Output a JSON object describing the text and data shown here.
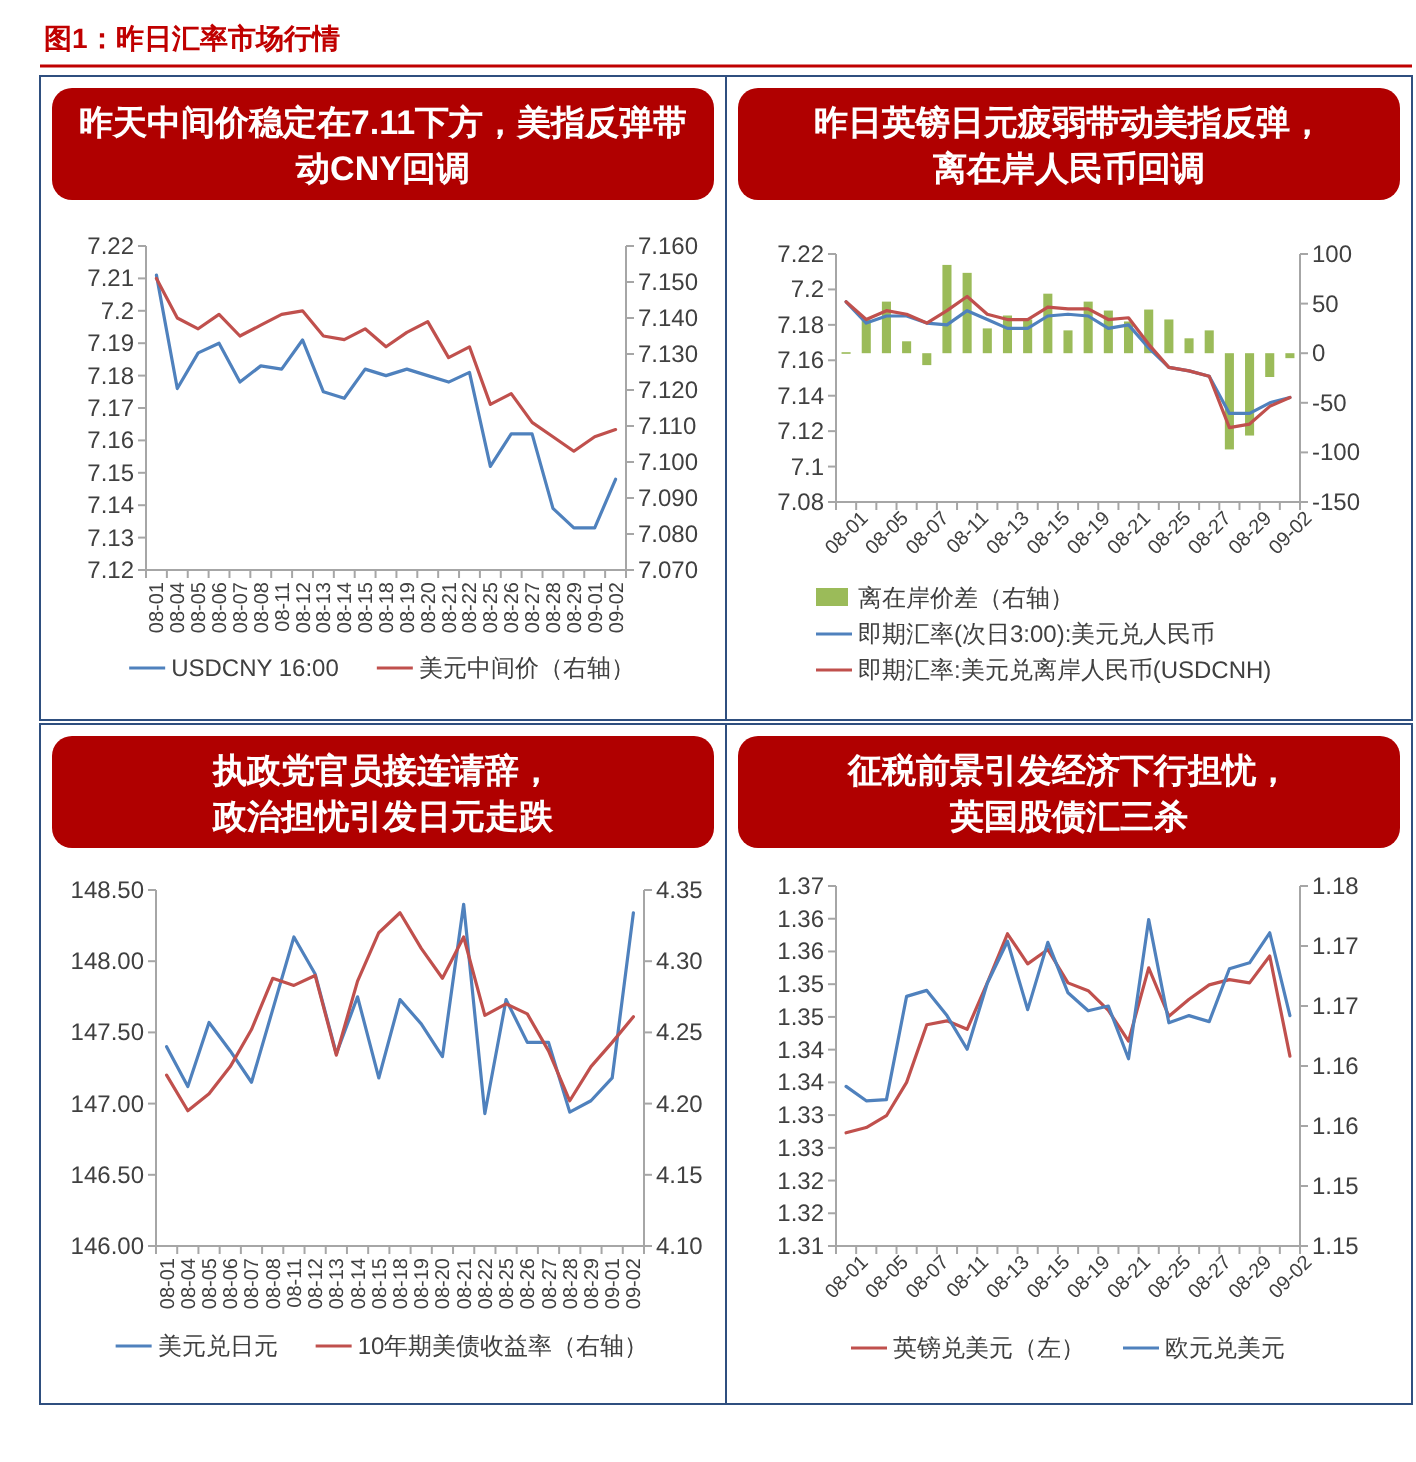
{
  "chart_data": [
    {
      "type": "line",
      "title": "昨天中间价稳定在7.11下方，美指反弹带动CNY回调",
      "annotations": [
        "图1：昨日汇率市场行情"
      ],
      "categories": [
        "08-01",
        "08-04",
        "08-05",
        "08-06",
        "08-07",
        "08-08",
        "08-11",
        "08-12",
        "08-13",
        "08-14",
        "08-15",
        "08-18",
        "08-19",
        "08-20",
        "08-21",
        "08-22",
        "08-25",
        "08-26",
        "08-27",
        "08-28",
        "08-29",
        "09-01",
        "09-02"
      ],
      "ylim": [
        7.12,
        7.22
      ],
      "yticks": [
        7.12,
        7.13,
        7.14,
        7.15,
        7.16,
        7.17,
        7.18,
        7.19,
        7.2,
        7.21,
        7.22
      ],
      "y2lim": [
        7.07,
        7.16
      ],
      "y2ticks": [
        {
          "value": 7.07,
          "label": "7.070"
        },
        {
          "value": 7.08,
          "label": "7.080"
        },
        {
          "value": 7.09,
          "label": "7.090"
        },
        {
          "value": 7.1,
          "label": "7.100"
        },
        {
          "value": 7.11,
          "label": "7.110"
        },
        {
          "value": 7.12,
          "label": "7.120"
        },
        {
          "value": 7.13,
          "label": "7.130"
        },
        {
          "value": 7.14,
          "label": "7.140"
        },
        {
          "value": 7.15,
          "label": "7.150"
        },
        {
          "value": 7.16,
          "label": "7.160"
        }
      ],
      "legend": "bottom",
      "series": [
        {
          "name": "USDCNY 16:00",
          "color": "#4f81bd",
          "values": [
            7.211,
            7.176,
            7.187,
            7.19,
            7.178,
            7.183,
            7.182,
            7.191,
            7.175,
            7.173,
            7.182,
            7.18,
            7.182,
            7.18,
            7.178,
            7.181,
            7.152,
            7.162,
            7.162,
            7.139,
            7.133,
            7.133,
            7.148
          ]
        },
        {
          "name": "美元中间价（右轴）",
          "color": "#c0504d",
          "axis": "y2",
          "values": [
            7.151,
            7.14,
            7.137,
            7.141,
            7.135,
            7.138,
            7.141,
            7.142,
            7.135,
            7.134,
            7.137,
            7.132,
            7.136,
            7.139,
            7.129,
            7.132,
            7.116,
            7.119,
            7.111,
            7.107,
            7.103,
            7.107,
            7.109
          ]
        }
      ]
    },
    {
      "type": "line",
      "title": "昨日英镑日元疲弱带动美指反弹，离在岸人民币回调",
      "categories": [
        "08-01",
        null,
        "08-05",
        null,
        "08-07",
        null,
        "08-11",
        null,
        "08-13",
        null,
        "08-15",
        null,
        "08-19",
        null,
        "08-21",
        null,
        "08-25",
        null,
        "08-27",
        null,
        "08-29",
        null,
        "09-02"
      ],
      "ylim": [
        7.08,
        7.22
      ],
      "yticks": [
        7.08,
        7.1,
        7.12,
        7.14,
        7.16,
        7.18,
        7.2,
        7.22
      ],
      "y2lim": [
        -150,
        100
      ],
      "y2ticks": [
        -150,
        -100,
        -50,
        0,
        50,
        100
      ],
      "legend": "bottom",
      "series": [
        {
          "name": "离在岸价差（右轴）",
          "type": "bar",
          "color": "#9bbb59",
          "axis": "y2",
          "values": [
            1,
            34,
            52,
            12,
            -12,
            89,
            81,
            25,
            38,
            34,
            60,
            23,
            52,
            43,
            32,
            44,
            34,
            15,
            23,
            -97,
            -83,
            -24,
            -5
          ]
        },
        {
          "name": "即期汇率(次日3:00):美元兑人民币",
          "color": "#4f81bd",
          "values": [
            7.193,
            7.181,
            7.185,
            7.185,
            7.181,
            7.18,
            7.188,
            7.183,
            7.178,
            7.178,
            7.185,
            7.186,
            7.185,
            7.178,
            7.18,
            7.167,
            7.156,
            7.154,
            7.151,
            7.13,
            7.13,
            7.136,
            7.139
          ]
        },
        {
          "name": "即期汇率:美元兑离岸人民币(USDCNH)",
          "color": "#c0504d",
          "values": [
            7.193,
            7.183,
            7.188,
            7.186,
            7.181,
            7.188,
            7.196,
            7.186,
            7.183,
            7.183,
            7.19,
            7.189,
            7.189,
            7.183,
            7.184,
            7.169,
            7.156,
            7.154,
            7.151,
            7.122,
            7.124,
            7.134,
            7.139
          ]
        }
      ]
    },
    {
      "type": "line",
      "title": "执政党官员接连请辞，政治担忧引发日元走跌",
      "categories": [
        "08-01",
        "08-04",
        "08-05",
        "08-06",
        "08-07",
        "08-08",
        "08-11",
        "08-12",
        "08-13",
        "08-14",
        "08-15",
        "08-18",
        "08-19",
        "08-20",
        "08-21",
        "08-22",
        "08-25",
        "08-26",
        "08-27",
        "08-28",
        "08-29",
        "09-01",
        "09-02"
      ],
      "ylim": [
        146.0,
        148.5
      ],
      "yticks": [
        {
          "value": 146,
          "label": "146.00"
        },
        {
          "value": 146.5,
          "label": "146.50"
        },
        {
          "value": 147,
          "label": "147.00"
        },
        {
          "value": 147.5,
          "label": "147.50"
        },
        {
          "value": 148,
          "label": "148.00"
        },
        {
          "value": 148.5,
          "label": "148.50"
        }
      ],
      "y2lim": [
        4.1,
        4.35
      ],
      "y2ticks": [
        {
          "value": 4.1,
          "label": "4.10"
        },
        {
          "value": 4.15,
          "label": "4.15"
        },
        {
          "value": 4.2,
          "label": "4.20"
        },
        {
          "value": 4.25,
          "label": "4.25"
        },
        {
          "value": 4.3,
          "label": "4.30"
        },
        {
          "value": 4.35,
          "label": "4.35"
        }
      ],
      "legend": "bottom",
      "series": [
        {
          "name": "美元兑日元",
          "color": "#4f81bd",
          "values": [
            147.4,
            147.12,
            147.57,
            147.37,
            147.15,
            147.66,
            148.17,
            147.91,
            147.35,
            147.75,
            147.18,
            147.73,
            147.56,
            147.33,
            148.4,
            146.93,
            147.73,
            147.43,
            147.43,
            146.94,
            147.02,
            147.18,
            148.34
          ]
        },
        {
          "name": "10年期美债收益率（右轴）",
          "color": "#c0504d",
          "axis": "y2",
          "values": [
            4.22,
            4.195,
            4.207,
            4.226,
            4.252,
            4.288,
            4.283,
            4.29,
            4.234,
            4.286,
            4.32,
            4.334,
            4.309,
            4.288,
            4.317,
            4.262,
            4.27,
            4.263,
            4.237,
            4.202,
            4.226,
            4.243,
            4.261
          ]
        }
      ]
    },
    {
      "type": "line",
      "title": "征税前景引发经济下行担忧，英国股债汇三杀",
      "categories": [
        "08-01",
        null,
        "08-05",
        null,
        "08-07",
        null,
        "08-11",
        null,
        "08-13",
        null,
        "08-15",
        null,
        "08-19",
        null,
        "08-21",
        null,
        "08-25",
        null,
        "08-27",
        null,
        "08-29",
        null,
        "09-02"
      ],
      "ylim": [
        1.31,
        1.365
      ],
      "yticks": [
        {
          "value": 1.31,
          "label": "1.31"
        },
        {
          "value": 1.315,
          "label": "1.32"
        },
        {
          "value": 1.32,
          "label": "1.32"
        },
        {
          "value": 1.325,
          "label": "1.33"
        },
        {
          "value": 1.33,
          "label": "1.33"
        },
        {
          "value": 1.335,
          "label": "1.34"
        },
        {
          "value": 1.34,
          "label": "1.34"
        },
        {
          "value": 1.345,
          "label": "1.35"
        },
        {
          "value": 1.35,
          "label": "1.35"
        },
        {
          "value": 1.355,
          "label": "1.36"
        },
        {
          "value": 1.36,
          "label": "1.36"
        },
        {
          "value": 1.365,
          "label": "1.37"
        }
      ],
      "y2lim": [
        1.145,
        1.175
      ],
      "y2ticks": [
        {
          "value": 1.145,
          "label": "1.15"
        },
        {
          "value": 1.15,
          "label": "1.15"
        },
        {
          "value": 1.155,
          "label": "1.16"
        },
        {
          "value": 1.16,
          "label": "1.16"
        },
        {
          "value": 1.165,
          "label": "1.17"
        },
        {
          "value": 1.17,
          "label": "1.17"
        },
        {
          "value": 1.175,
          "label": "1.18"
        }
      ],
      "legend": "bottom",
      "series": [
        {
          "name": "英镑兑美元（左）",
          "color": "#c0504d",
          "values": [
            1.3273,
            1.3281,
            1.3299,
            1.335,
            1.3438,
            1.3444,
            1.3431,
            1.3502,
            1.3577,
            1.3531,
            1.3553,
            1.3502,
            1.349,
            1.346,
            1.3413,
            1.3525,
            1.3451,
            1.3477,
            1.3499,
            1.3507,
            1.3502,
            1.3543,
            1.339
          ]
        },
        {
          "name": "欧元兑美元",
          "color": "#4f81bd",
          "axis": "y2",
          "values": [
            1.1583,
            1.1571,
            1.1572,
            1.1658,
            1.1663,
            1.1642,
            1.1614,
            1.1669,
            1.1704,
            1.1647,
            1.1703,
            1.1661,
            1.1646,
            1.165,
            1.1606,
            1.1722,
            1.1636,
            1.1642,
            1.1637,
            1.1681,
            1.1686,
            1.1711,
            1.1642
          ]
        }
      ]
    }
  ]
}
